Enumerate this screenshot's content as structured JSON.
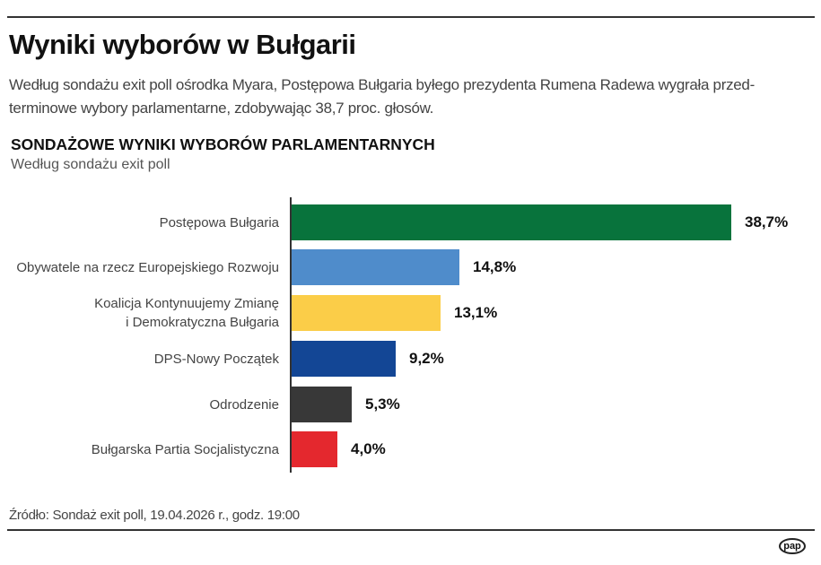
{
  "header": {
    "title": "Wyniki wyborów w Bułgarii",
    "lead": "Według sondażu exit poll ośrodka Myara, Postępowa Bułgaria byłego prezydenta Rumena Radewa wygrała przed-terminowe wybory parlamentarne, zdobywając 38,7 proc. głosów."
  },
  "chart_header": {
    "subtitle": "SONDAŻOWE WYNIKI WYBORÓW PARLAMENTARNYCH",
    "note": "Według sondażu exit poll"
  },
  "footer": {
    "source": "Źródło: Sondaż exit poll, 19.04.2026 r., godz. 19:00",
    "logo": "pap"
  },
  "bars": [
    {
      "label": "Postępowa Bułgaria",
      "value": 38.7,
      "value_label": "38,7%",
      "color": "#08733c"
    },
    {
      "label": "Obywatele na rzecz Europejskiego Rozwoju",
      "value": 14.8,
      "value_label": "14,8%",
      "color": "#4f8ccb"
    },
    {
      "label": "Koalicja Kontynuujemy Zmianę\ni Demokratyczna Bułgaria",
      "value": 13.1,
      "value_label": "13,1%",
      "color": "#fbcd48"
    },
    {
      "label": "DPS-Nowy Początek",
      "value": 9.2,
      "value_label": "9,2%",
      "color": "#134695"
    },
    {
      "label": "Odrodzenie",
      "value": 5.3,
      "value_label": "5,3%",
      "color": "#383838"
    },
    {
      "label": "Bułgarska Partia Socjalistyczna",
      "value": 4.0,
      "value_label": "4,0%",
      "color": "#e4282e"
    }
  ],
  "chart_data": {
    "type": "bar",
    "orientation": "horizontal",
    "title": "SONDAŻOWE WYNIKI WYBORÓW PARLAMENTARNYCH",
    "subtitle": "Według sondażu exit poll",
    "categories": [
      "Postępowa Bułgaria",
      "Obywatele na rzecz Europejskiego Rozwoju",
      "Koalicja Kontynuujemy Zmianę i Demokratyczna Bułgaria",
      "DPS-Nowy Początek",
      "Odrodzenie",
      "Bułgarska Partia Socjalistyczna"
    ],
    "values": [
      38.7,
      14.8,
      13.1,
      9.2,
      5.3,
      4.0
    ],
    "value_labels": [
      "38,7%",
      "14,8%",
      "13,1%",
      "9,2%",
      "5,3%",
      "4,0%"
    ],
    "colors": [
      "#08733c",
      "#4f8ccb",
      "#fbcd48",
      "#134695",
      "#383838",
      "#e4282e"
    ],
    "xlabel": "",
    "ylabel": "",
    "unit": "%",
    "grid": false,
    "legend": "none",
    "source": "Źródło: Sondaż exit poll, 19.04.2026 r., godz. 19:00"
  }
}
